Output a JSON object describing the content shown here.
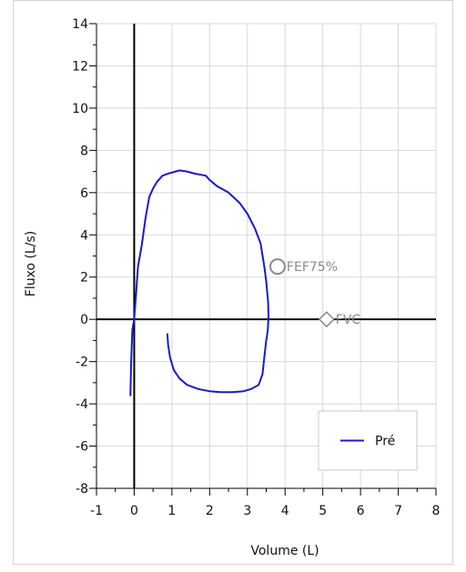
{
  "chart_data": {
    "type": "line",
    "xlabel": "Volume (L)",
    "ylabel": "Fluxo (L/s)",
    "xlim": [
      -1,
      8
    ],
    "ylim": [
      -8,
      14
    ],
    "x_major_ticks": [
      -1,
      0,
      1,
      2,
      3,
      4,
      5,
      6,
      7,
      8
    ],
    "y_major_ticks": [
      -8,
      -6,
      -4,
      -2,
      0,
      2,
      4,
      6,
      8,
      10,
      12,
      14
    ],
    "grid": true,
    "grid_color": "#d8d8d8",
    "axis_color": "#000000",
    "legend": {
      "placement": "bottom-right",
      "entries": [
        {
          "label": "Pré",
          "color": "#1a1acc"
        }
      ]
    },
    "series": [
      {
        "name": "Pré",
        "color": "#1a1acc",
        "points": [
          [
            -0.1,
            -3.6
          ],
          [
            -0.08,
            -2.0
          ],
          [
            -0.05,
            -0.5
          ],
          [
            0.0,
            0.0
          ],
          [
            0.05,
            1.2
          ],
          [
            0.1,
            2.5
          ],
          [
            0.2,
            3.5
          ],
          [
            0.3,
            4.8
          ],
          [
            0.4,
            5.8
          ],
          [
            0.5,
            6.2
          ],
          [
            0.6,
            6.5
          ],
          [
            0.75,
            6.8
          ],
          [
            0.9,
            6.9
          ],
          [
            1.1,
            7.0
          ],
          [
            1.2,
            7.05
          ],
          [
            1.4,
            7.0
          ],
          [
            1.6,
            6.9
          ],
          [
            1.9,
            6.8
          ],
          [
            2.0,
            6.6
          ],
          [
            2.2,
            6.3
          ],
          [
            2.5,
            6.0
          ],
          [
            2.8,
            5.5
          ],
          [
            3.0,
            5.0
          ],
          [
            3.2,
            4.3
          ],
          [
            3.35,
            3.6
          ],
          [
            3.45,
            2.5
          ],
          [
            3.5,
            1.8
          ],
          [
            3.55,
            0.8
          ],
          [
            3.56,
            0.1
          ],
          [
            3.54,
            -0.5
          ],
          [
            3.52,
            -0.8
          ],
          [
            3.5,
            -1.0
          ],
          [
            3.45,
            -1.8
          ],
          [
            3.4,
            -2.6
          ],
          [
            3.3,
            -3.1
          ],
          [
            3.1,
            -3.3
          ],
          [
            2.9,
            -3.4
          ],
          [
            2.6,
            -3.45
          ],
          [
            2.3,
            -3.45
          ],
          [
            2.0,
            -3.4
          ],
          [
            1.7,
            -3.3
          ],
          [
            1.4,
            -3.1
          ],
          [
            1.2,
            -2.8
          ],
          [
            1.05,
            -2.4
          ],
          [
            0.95,
            -1.8
          ],
          [
            0.9,
            -1.2
          ],
          [
            0.88,
            -0.7
          ]
        ]
      }
    ],
    "markers": [
      {
        "label": "FEF75%",
        "x": 3.8,
        "y": 2.5,
        "shape": "circle",
        "color": "#8a8a8a"
      },
      {
        "label": "FVC",
        "x": 5.1,
        "y": 0.0,
        "shape": "diamond",
        "color": "#8a8a8a"
      }
    ]
  }
}
